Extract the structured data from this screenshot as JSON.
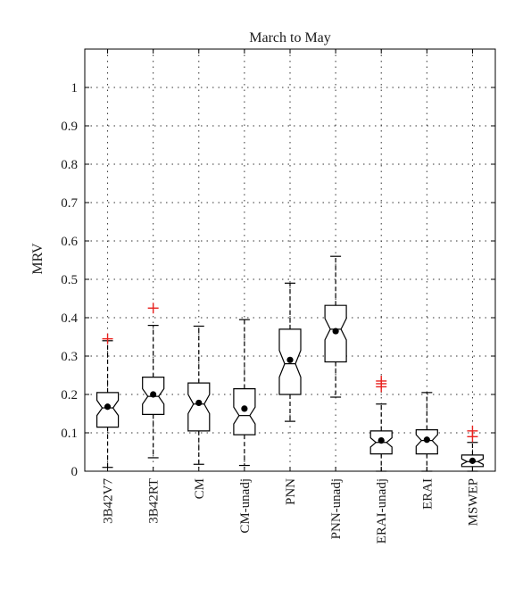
{
  "chart_data": {
    "type": "boxplot",
    "title": "March to May",
    "xlabel": "",
    "ylabel": "MRV",
    "ylim": [
      0,
      1.1
    ],
    "yticks": [
      "0",
      "0.1",
      "0.2",
      "0.3",
      "0.4",
      "0.5",
      "0.6",
      "0.7",
      "0.8",
      "0.9",
      "1"
    ],
    "ytick_values": [
      0,
      0.1,
      0.2,
      0.3,
      0.4,
      0.5,
      0.6,
      0.7,
      0.8,
      0.9,
      1.0
    ],
    "grid": true,
    "notched": true,
    "categories": [
      "3B42V7",
      "3B42RT",
      "CM",
      "CM-unadj",
      "PNN",
      "PNN-unadj",
      "ERAI-unadj",
      "ERAI",
      "MSWEP"
    ],
    "boxes": [
      {
        "name": "3B42V7",
        "whisker_low": 0.01,
        "q1": 0.115,
        "median": 0.165,
        "q3": 0.205,
        "whisker_high": 0.34,
        "mean": 0.168,
        "notch_low": 0.145,
        "notch_high": 0.185,
        "outliers": [
          0.345
        ]
      },
      {
        "name": "3B42RT",
        "whisker_low": 0.035,
        "q1": 0.148,
        "median": 0.195,
        "q3": 0.245,
        "whisker_high": 0.38,
        "mean": 0.2,
        "notch_low": 0.175,
        "notch_high": 0.215,
        "outliers": [
          0.425
        ]
      },
      {
        "name": "CM",
        "whisker_low": 0.018,
        "q1": 0.105,
        "median": 0.175,
        "q3": 0.23,
        "whisker_high": 0.378,
        "mean": 0.178,
        "notch_low": 0.15,
        "notch_high": 0.2,
        "outliers": []
      },
      {
        "name": "CM-unadj",
        "whisker_low": 0.015,
        "q1": 0.095,
        "median": 0.145,
        "q3": 0.215,
        "whisker_high": 0.395,
        "mean": 0.163,
        "notch_low": 0.123,
        "notch_high": 0.167,
        "outliers": []
      },
      {
        "name": "PNN",
        "whisker_low": 0.13,
        "q1": 0.2,
        "median": 0.28,
        "q3": 0.37,
        "whisker_high": 0.49,
        "mean": 0.29,
        "notch_low": 0.245,
        "notch_high": 0.315,
        "outliers": []
      },
      {
        "name": "PNN-unadj",
        "whisker_low": 0.193,
        "q1": 0.285,
        "median": 0.37,
        "q3": 0.432,
        "whisker_high": 0.56,
        "mean": 0.365,
        "notch_low": 0.342,
        "notch_high": 0.398,
        "outliers": []
      },
      {
        "name": "ERAI-unadj",
        "whisker_low": 0.0,
        "q1": 0.045,
        "median": 0.075,
        "q3": 0.105,
        "whisker_high": 0.175,
        "mean": 0.08,
        "notch_low": 0.063,
        "notch_high": 0.087,
        "outliers": [
          0.22,
          0.228,
          0.235
        ]
      },
      {
        "name": "ERAI",
        "whisker_low": 0.0,
        "q1": 0.045,
        "median": 0.08,
        "q3": 0.108,
        "whisker_high": 0.205,
        "mean": 0.082,
        "notch_low": 0.065,
        "notch_high": 0.095,
        "outliers": []
      },
      {
        "name": "MSWEP",
        "whisker_low": 0.0,
        "q1": 0.012,
        "median": 0.025,
        "q3": 0.042,
        "whisker_high": 0.075,
        "mean": 0.027,
        "notch_low": 0.018,
        "notch_high": 0.032,
        "outliers": [
          0.09,
          0.105
        ]
      }
    ],
    "colors": {
      "box": "#000000",
      "whisker": "#000000",
      "mean_marker": "#000000",
      "outlier": "#e8221f",
      "grid": "#333333",
      "background": "#ffffff"
    }
  }
}
